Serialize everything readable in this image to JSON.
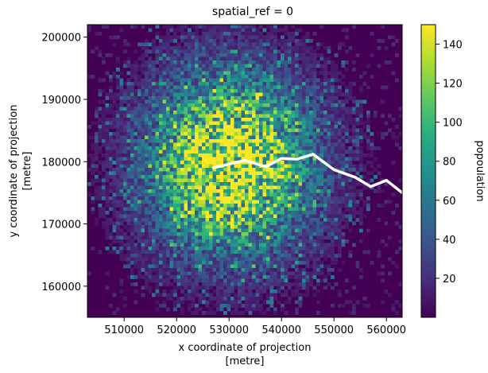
{
  "chart_data": {
    "type": "heatmap",
    "title": "spatial_ref = 0",
    "xlabel": [
      "x coordinate of projection",
      "[metre]"
    ],
    "ylabel": [
      "y coordinate of projection",
      "[metre]"
    ],
    "xlim": [
      503000,
      563000
    ],
    "ylim": [
      155000,
      202000
    ],
    "xticks": [
      510000,
      520000,
      530000,
      540000,
      550000,
      560000
    ],
    "xtick_labels": [
      "510000",
      "520000",
      "530000",
      "540000",
      "550000",
      "560000"
    ],
    "yticks": [
      160000,
      170000,
      180000,
      190000,
      200000
    ],
    "ytick_labels": [
      "160000",
      "170000",
      "180000",
      "190000",
      "200000"
    ],
    "colorbar": {
      "label": "popoulation",
      "range": [
        0,
        150
      ],
      "ticks": [
        20,
        40,
        60,
        80,
        100,
        120,
        140
      ],
      "tick_labels": [
        "20",
        "40",
        "60",
        "80",
        "100",
        "120",
        "140"
      ],
      "colormap": "viridis"
    },
    "description_values": {
      "center_peak": [
        530000,
        180000
      ],
      "river_path": [
        [
          527000,
          179000
        ],
        [
          533000,
          180200
        ],
        [
          537000,
          179200
        ],
        [
          540000,
          180500
        ],
        [
          543000,
          180400
        ],
        [
          546000,
          181200
        ],
        [
          550000,
          178700
        ],
        [
          554000,
          177500
        ],
        [
          557000,
          176000
        ],
        [
          560000,
          177000
        ],
        [
          563000,
          175000
        ]
      ]
    }
  }
}
